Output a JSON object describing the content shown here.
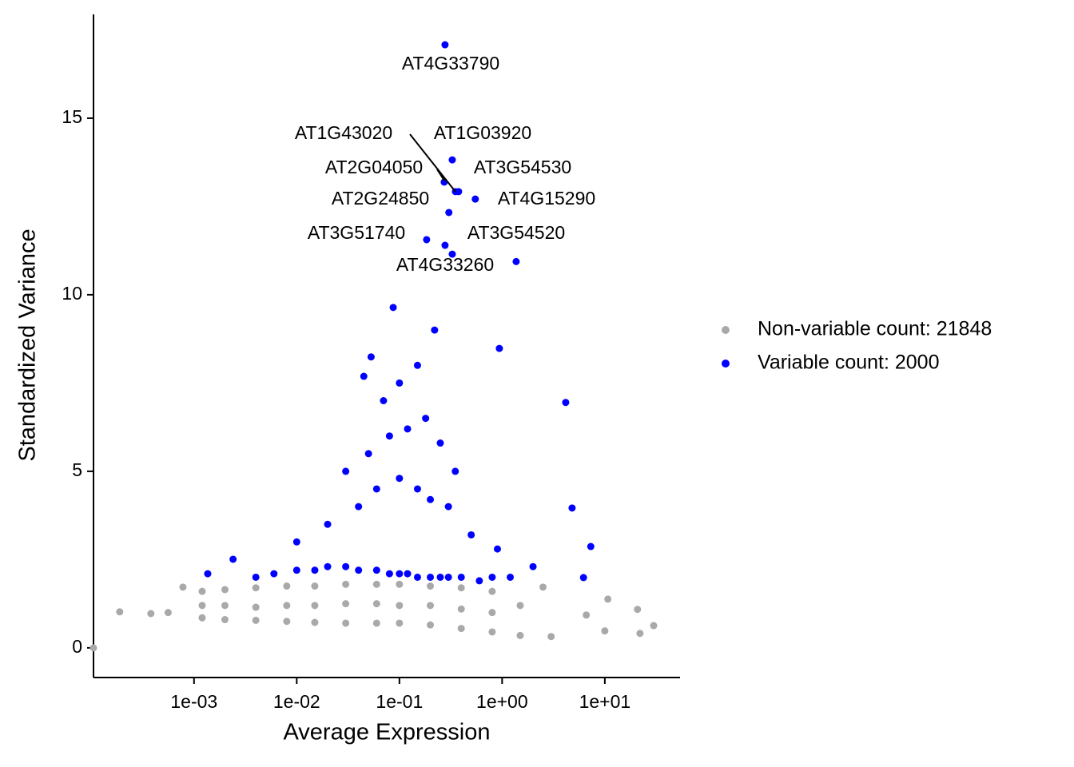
{
  "chart_data": {
    "type": "scatter",
    "x_label": "Average Expression",
    "y_label": "Standardized Variance",
    "xscale": "log",
    "xlim": [
      0.000105,
      54
    ],
    "ylim": [
      -0.84,
      17.94
    ],
    "xticks": [
      {
        "value": 0.001,
        "label": "1e-03"
      },
      {
        "value": 0.01,
        "label": "1e-02"
      },
      {
        "value": 0.1,
        "label": "1e-01"
      },
      {
        "value": 1,
        "label": "1e+00"
      },
      {
        "value": 10,
        "label": "1e+01"
      }
    ],
    "yticks": [
      0,
      5,
      10,
      15
    ],
    "legend": "right",
    "series": [
      {
        "name": "Non-variable count: 21848",
        "color": "#a9a9a9",
        "x": [
          0.000105,
          0.000189,
          0.00038,
          0.00056,
          0.00078,
          0.0012,
          0.0012,
          0.0012,
          0.002,
          0.002,
          0.002,
          0.004,
          0.004,
          0.004,
          0.008,
          0.008,
          0.008,
          0.015,
          0.015,
          0.015,
          0.03,
          0.03,
          0.03,
          0.06,
          0.06,
          0.06,
          0.1,
          0.1,
          0.1,
          0.2,
          0.2,
          0.2,
          0.4,
          0.4,
          0.4,
          0.8,
          0.8,
          0.8,
          1.5,
          1.5,
          2.5,
          3.0,
          6.6,
          10.0,
          10.7,
          20.8,
          22,
          29.9
        ],
        "values": [
          0,
          1.02,
          0.97,
          1.0,
          1.72,
          0.85,
          1.2,
          1.6,
          0.8,
          1.2,
          1.65,
          0.78,
          1.15,
          1.7,
          0.75,
          1.2,
          1.75,
          0.72,
          1.2,
          1.75,
          0.7,
          1.25,
          1.8,
          0.7,
          1.25,
          1.8,
          0.7,
          1.2,
          1.8,
          0.65,
          1.2,
          1.75,
          0.55,
          1.1,
          1.7,
          0.45,
          1.0,
          1.6,
          0.35,
          1.2,
          1.72,
          0.32,
          0.93,
          0.48,
          1.38,
          1.09,
          0.41,
          0.63
        ]
      },
      {
        "name": "Variable count: 2000",
        "color": "#0000ff",
        "x": [
          0.278,
          0.327,
          0.351,
          0.273,
          0.377,
          0.303,
          0.548,
          0.184,
          0.278,
          0.327,
          1.37,
          4.16,
          7.3,
          6.2,
          4.8,
          0.94,
          0.087,
          0.053,
          0.045,
          0.00136,
          0.0024,
          0.004,
          0.006,
          0.01,
          0.015,
          0.02,
          0.03,
          0.04,
          0.06,
          0.08,
          0.1,
          0.12,
          0.15,
          0.2,
          0.25,
          0.3,
          0.4,
          0.6,
          0.8,
          1.2,
          2.0,
          0.01,
          0.02,
          0.04,
          0.06,
          0.1,
          0.15,
          0.2,
          0.3,
          0.5,
          0.9,
          0.03,
          0.05,
          0.08,
          0.12,
          0.18,
          0.25,
          0.35,
          0.07,
          0.1,
          0.15,
          0.22
        ],
        "values": [
          17.08,
          13.82,
          12.92,
          13.19,
          12.92,
          12.33,
          12.71,
          11.56,
          11.4,
          11.15,
          10.94,
          6.95,
          2.87,
          1.99,
          3.96,
          8.48,
          9.64,
          8.24,
          7.69,
          2.1,
          2.51,
          2.0,
          2.1,
          2.2,
          2.2,
          2.3,
          2.3,
          2.2,
          2.2,
          2.1,
          2.1,
          2.1,
          2.0,
          2.0,
          2.0,
          2.0,
          2.0,
          1.9,
          2.0,
          2.0,
          2.3,
          3.0,
          3.5,
          4.0,
          4.5,
          4.8,
          4.5,
          4.2,
          4.0,
          3.2,
          2.8,
          5.0,
          5.5,
          6.0,
          6.2,
          6.5,
          5.8,
          5.0,
          7.0,
          7.5,
          8.0,
          9.0
        ]
      }
    ],
    "labels": [
      {
        "text": "AT4G33790"
      },
      {
        "text": "AT1G03920"
      },
      {
        "text": "AT1G43020"
      },
      {
        "text": "AT2G04050"
      },
      {
        "text": "AT3G54530"
      },
      {
        "text": "AT2G24850"
      },
      {
        "text": "AT4G15290"
      },
      {
        "text": "AT3G51740"
      },
      {
        "text": "AT3G54520"
      },
      {
        "text": "AT4G33260"
      }
    ]
  }
}
